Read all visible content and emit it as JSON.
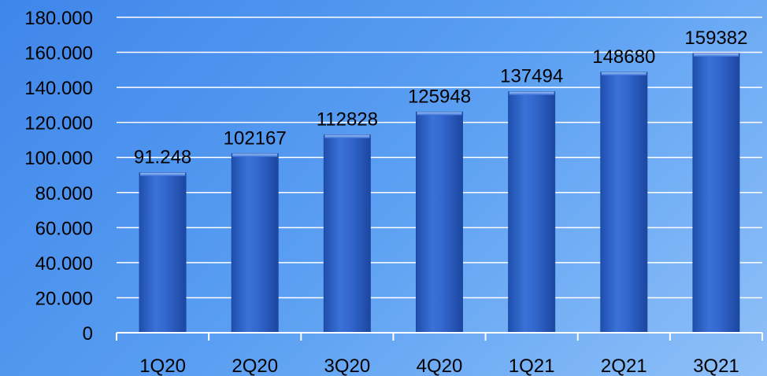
{
  "chart_data": {
    "type": "bar",
    "title": "",
    "categories": [
      "1Q20",
      "2Q20",
      "3Q20",
      "4Q20",
      "1Q21",
      "2Q21",
      "3Q21"
    ],
    "values": [
      91248,
      102167,
      112828,
      125948,
      137494,
      148680,
      159382
    ],
    "data_labels": [
      "91.248",
      "102167",
      "112828",
      "125948",
      "137494",
      "148680",
      "159382"
    ],
    "y_ticks": [
      0,
      20000,
      40000,
      60000,
      80000,
      100000,
      120000,
      140000,
      160000,
      180000
    ],
    "y_tick_labels": [
      "0",
      "20.000",
      "40.000",
      "60.000",
      "80.000",
      "100.000",
      "120.000",
      "140.000",
      "160.000",
      "180.000"
    ],
    "ylim": [
      0,
      180000
    ],
    "xlabel": "",
    "ylabel": "",
    "grid": true,
    "legend": "none",
    "colors": {
      "bar": "#2c63c9",
      "bar_highlight": "#5b8ee3",
      "bar_edge": "#1e4aa3",
      "gridline": "#ffffff",
      "axis": "#ffffff",
      "title": "#c0102a"
    }
  }
}
